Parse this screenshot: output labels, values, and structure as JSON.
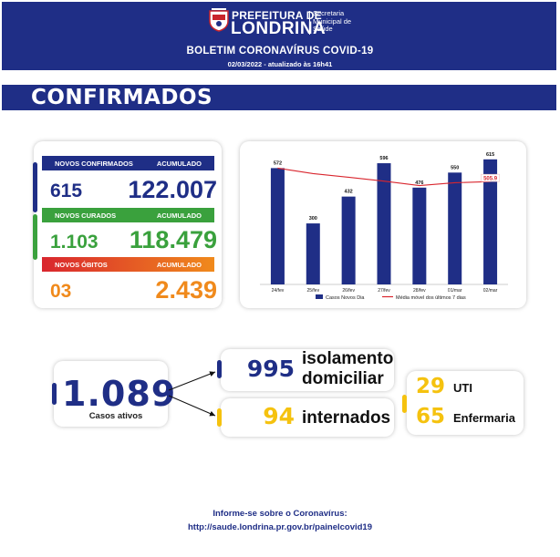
{
  "header": {
    "brand_top": "PREFEITURA DE",
    "brand_main": "LONDRINA",
    "brand_sub_1": "Secretaria",
    "brand_sub_2": "Municipal de",
    "brand_sub_3": "Saúde",
    "title": "BOLETIM CORONAVÍRUS COVID-19",
    "date": "02/03/2022 - atualizado às 16h41"
  },
  "section": {
    "title": "CONFIRMADOS"
  },
  "stats": {
    "confirmados": {
      "label": "NOVOS CONFIRMADOS",
      "acc_label": "ACUMULADO",
      "today": "615",
      "total": "122.007"
    },
    "curados": {
      "label": "NOVOS CURADOS",
      "acc_label": "ACUMULADO",
      "today": "1.103",
      "total": "118.479"
    },
    "obitos": {
      "label": "NOVOS ÓBITOS",
      "acc_label": "ACUMULADO",
      "today": "03",
      "total": "2.439"
    }
  },
  "colors": {
    "navy": "#1f2e86",
    "green": "#3aa13d",
    "orange": "#f08a1c",
    "red_line": "#d9262e",
    "yellow": "#f5c20f"
  },
  "chart_data": {
    "type": "bar",
    "categories": [
      "24/fev",
      "25/fev",
      "26/fev",
      "27/fev",
      "28/fev",
      "01/mar",
      "02/mar"
    ],
    "series": [
      {
        "name": "Casos Novos Dia",
        "type": "bar",
        "values": [
          572,
          300,
          432,
          596,
          476,
          550,
          615
        ]
      },
      {
        "name": "Média móvel dos últimos 7 dias",
        "type": "line",
        "values": [
          572,
          545,
          527,
          508,
          486,
          500,
          505.9
        ]
      }
    ],
    "data_labels": [
      "572",
      "300",
      "432",
      "596",
      "476",
      "550",
      "615"
    ],
    "line_label": "505.9",
    "ylim": [
      0,
      650
    ],
    "legend": "bottom",
    "grid": false
  },
  "ativos": {
    "value": "1.089",
    "label": "Casos ativos"
  },
  "isolamento": {
    "value": "995",
    "label_1": "isolamento",
    "label_2": "domiciliar"
  },
  "internados": {
    "value": "94",
    "label": "internados"
  },
  "hospital": {
    "uti_value": "29",
    "uti_label": "UTI",
    "enf_value": "65",
    "enf_label": "Enfermaria"
  },
  "footer": {
    "line1": "Informe-se sobre o Coronavírus:",
    "line2": "http://saude.londrina.pr.gov.br/painelcovid19"
  }
}
